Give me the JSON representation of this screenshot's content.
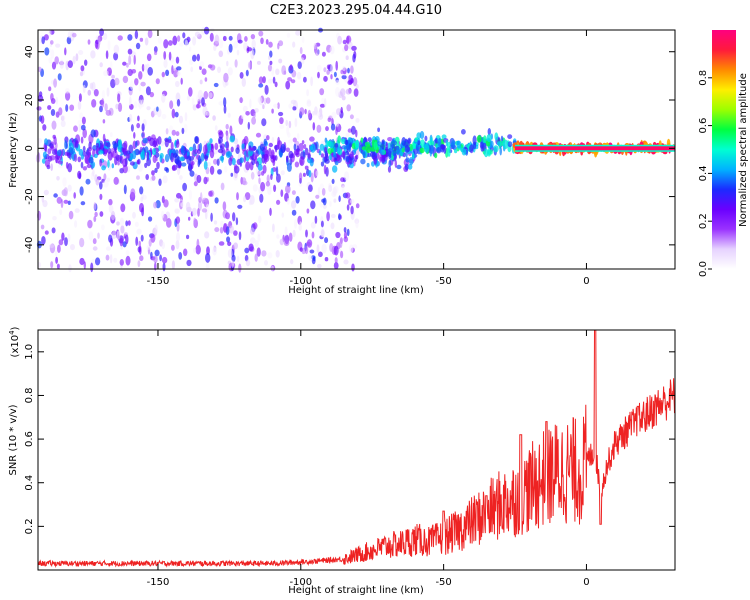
{
  "title": "C2E3.2023.295.04.44.G10",
  "chart_data": [
    {
      "type": "heatmap",
      "xlabel": "Height of straight line (km)",
      "ylabel": "Frequency (Hz)",
      "xlim": [
        -192,
        31
      ],
      "ylim": [
        -50,
        49
      ],
      "xticks": [
        -150,
        -100,
        -50,
        0
      ],
      "xtick_labels": [
        "-150",
        "-100",
        "-50",
        "0"
      ],
      "yticks": [
        -40,
        -20,
        0,
        20,
        40
      ],
      "ytick_labels": [
        "-40",
        "-20",
        "0",
        "20",
        "40"
      ],
      "colorbar": {
        "label": "Normalized spectral amplitude",
        "range": [
          0,
          1
        ],
        "ticks": [
          0,
          0.2,
          0.4,
          0.6,
          0.8
        ],
        "tick_labels": [
          "0.0",
          "0.2",
          "0.4",
          "0.6",
          "0.8"
        ],
        "colormap": [
          "#ffffff",
          "#e6d2ff",
          "#9a32ff",
          "#6a00ff",
          "#1b2bff",
          "#00b3ff",
          "#00ffd2",
          "#00ff40",
          "#9cff00",
          "#ffee00",
          "#ff8a00",
          "#ff1a3c",
          "#ff007f"
        ]
      },
      "features": [
        {
          "x": [
            -192,
            -80
          ],
          "freq_band": [
            -50,
            49
          ],
          "amplitude": [
            0.02,
            0.35
          ],
          "note": "broadband scatter"
        },
        {
          "x": [
            -190,
            -60
          ],
          "freq_center": -2,
          "freq_halfwidth": 7,
          "amplitude": [
            0.2,
            0.45
          ]
        },
        {
          "x": [
            -90,
            -25
          ],
          "freq_center": 1,
          "freq_halfwidth": 4,
          "amplitude": [
            0.3,
            0.6
          ]
        },
        {
          "x": [
            -25,
            31
          ],
          "freq_center": 0,
          "freq_halfwidth": 1.5,
          "amplitude": [
            0.8,
            1.0
          ]
        }
      ],
      "grid": false
    },
    {
      "type": "line",
      "xlabel": "Height of straight line (km)",
      "ylabel": "SNR (10 * v/v)",
      "y_multiplier_label": "(x10",
      "y_multiplier_exponent": "4",
      "y_multiplier_close": ")",
      "xlim": [
        -192,
        31
      ],
      "ylim": [
        0,
        1.1
      ],
      "xticks": [
        -150,
        -100,
        -50,
        0
      ],
      "xtick_labels": [
        "-150",
        "-100",
        "-50",
        "0"
      ],
      "yticks": [
        0.2,
        0.4,
        0.6,
        0.8,
        1.0
      ],
      "ytick_labels": [
        "0.2",
        "0.4",
        "0.6",
        "0.8",
        "1.0"
      ],
      "series": [
        {
          "color": "#ee2222",
          "x": [
            -192,
            -170,
            -150,
            -130,
            -110,
            -95,
            -85,
            -80,
            -75,
            -70,
            -65,
            -60,
            -55,
            -50,
            -45,
            -40,
            -35,
            -30,
            -25,
            -20,
            -15,
            -10,
            -5,
            -2,
            0,
            3,
            5,
            7,
            10,
            15,
            20,
            25,
            31
          ],
          "y": [
            0.03,
            0.03,
            0.03,
            0.03,
            0.03,
            0.04,
            0.05,
            0.07,
            0.09,
            0.11,
            0.12,
            0.14,
            0.13,
            0.15,
            0.18,
            0.22,
            0.26,
            0.3,
            0.33,
            0.37,
            0.42,
            0.45,
            0.46,
            0.44,
            0.5,
            0.55,
            0.35,
            0.47,
            0.58,
            0.65,
            0.7,
            0.75,
            0.8
          ],
          "spikes": [
            {
              "x": -50,
              "y": 0.27
            },
            {
              "x": -35,
              "y": 0.34
            },
            {
              "x": -23,
              "y": 0.62
            },
            {
              "x": -14,
              "y": 0.68
            },
            {
              "x": 3,
              "y": 1.1
            },
            {
              "x": 5,
              "y": 0.21
            },
            {
              "x": 18,
              "y": 0.75
            }
          ]
        }
      ],
      "grid": false
    }
  ]
}
